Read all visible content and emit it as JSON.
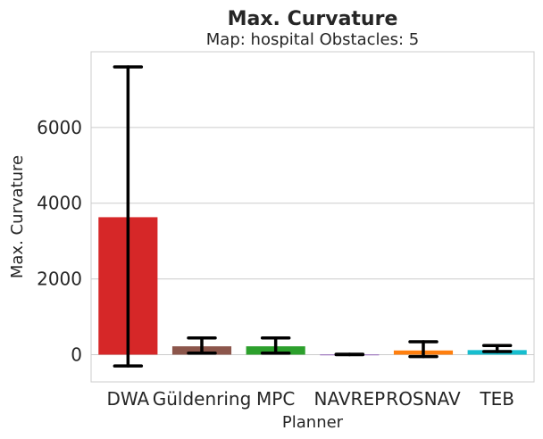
{
  "chart_data": {
    "type": "bar",
    "title": "Max. Curvature",
    "subtitle": "Map: hospital Obstacles: 5",
    "xlabel": "Planner",
    "ylabel": "Max. Curvature",
    "categories": [
      "DWA",
      "Güldenring",
      "MPC",
      "NAVREP",
      "ROSNAV",
      "TEB"
    ],
    "values": [
      3630,
      220,
      220,
      5,
      110,
      120
    ],
    "error_low": [
      -300,
      40,
      40,
      0,
      -50,
      80
    ],
    "error_high": [
      7600,
      440,
      440,
      10,
      340,
      240
    ],
    "colors": [
      "#d62728",
      "#8c564b",
      "#2ca02c",
      "#9467bd",
      "#ff7f0e",
      "#17becf"
    ],
    "yticks": [
      0,
      2000,
      4000,
      6000
    ],
    "ylim": [
      -720,
      8000
    ],
    "grid": "horizontal"
  }
}
